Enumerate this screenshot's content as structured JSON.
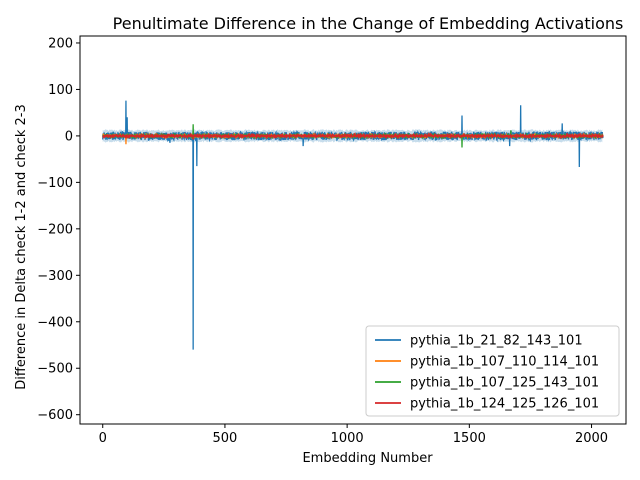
{
  "chart_data": {
    "type": "line",
    "title": "Penultimate Difference in the Change of Embedding Activations",
    "xlabel": "Embedding Number",
    "ylabel": "Difference in Delta check 1-2 and check 2-3",
    "xlim": [
      -93,
      2141
    ],
    "ylim": [
      -620,
      215
    ],
    "xticks": [
      0,
      500,
      1000,
      1500,
      2000
    ],
    "yticks": [
      200,
      100,
      0,
      -100,
      -200,
      -300,
      -400,
      -500,
      -600
    ],
    "legend_position": "lower-right",
    "embedding_count": 2048,
    "series": [
      {
        "name": "pythia_1b_21_82_143_101",
        "color": "#1f77b4",
        "noise_amplitude": 9,
        "spikes": [
          [
            95,
            76
          ],
          [
            100,
            40
          ],
          [
            275,
            -15
          ],
          [
            370,
            -460
          ],
          [
            385,
            -65
          ],
          [
            820,
            -22
          ],
          [
            1470,
            44
          ],
          [
            1665,
            -22
          ],
          [
            1710,
            66
          ],
          [
            1880,
            27
          ],
          [
            1950,
            -67
          ]
        ]
      },
      {
        "name": "pythia_1b_107_110_114_101",
        "color": "#ff7f0e",
        "noise_amplitude": 3,
        "spikes": [
          [
            95,
            -18
          ],
          [
            370,
            10
          ]
        ]
      },
      {
        "name": "pythia_1b_107_125_143_101",
        "color": "#2ca02c",
        "noise_amplitude": 3,
        "spikes": [
          [
            370,
            25
          ],
          [
            1470,
            -25
          ],
          [
            1670,
            12
          ]
        ]
      },
      {
        "name": "pythia_1b_124_125_126_101",
        "color": "#d62728",
        "noise_amplitude": 2.5,
        "spikes": [
          [
            370,
            -8
          ]
        ]
      }
    ]
  }
}
